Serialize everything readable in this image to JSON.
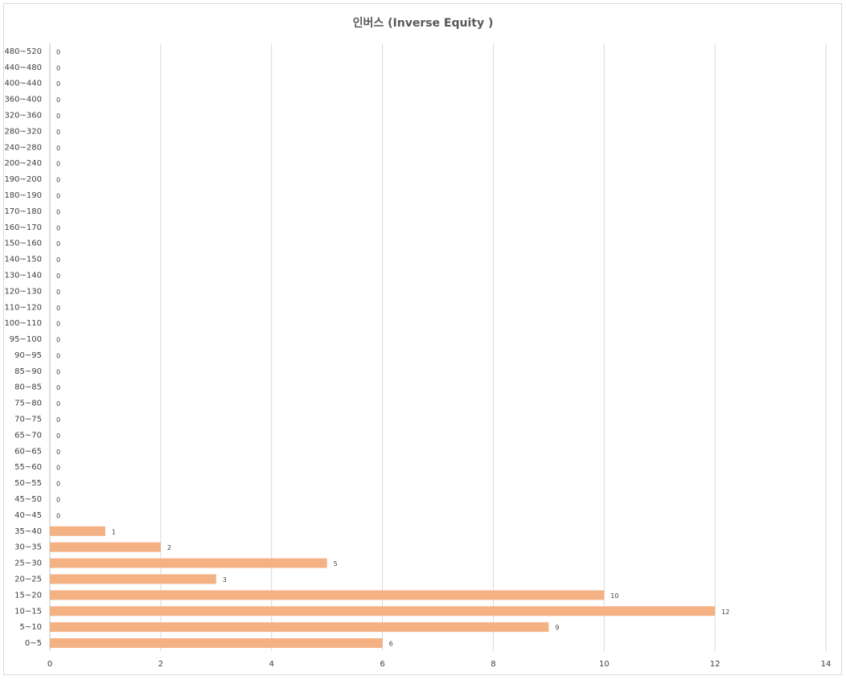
{
  "chart_data": {
    "type": "bar",
    "orientation": "horizontal",
    "title": "인버스 (Inverse Equity )",
    "categories": [
      "0~5",
      "5~10",
      "10~15",
      "15~20",
      "20~25",
      "25~30",
      "30~35",
      "35~40",
      "40~45",
      "45~50",
      "50~55",
      "55~60",
      "60~65",
      "65~70",
      "70~75",
      "75~80",
      "80~85",
      "85~90",
      "90~95",
      "95~100",
      "100~110",
      "110~120",
      "120~130",
      "130~140",
      "140~150",
      "150~160",
      "160~170",
      "170~180",
      "180~190",
      "190~200",
      "200~240",
      "240~280",
      "280~320",
      "320~360",
      "360~400",
      "400~440",
      "440~480",
      "480~520"
    ],
    "values": [
      6,
      9,
      12,
      10,
      3,
      5,
      2,
      1,
      0,
      0,
      0,
      0,
      0,
      0,
      0,
      0,
      0,
      0,
      0,
      0,
      0,
      0,
      0,
      0,
      0,
      0,
      0,
      0,
      0,
      0,
      0,
      0,
      0,
      0,
      0,
      0,
      0,
      0
    ],
    "color": "#f4b183",
    "xlim": [
      0,
      14
    ],
    "xticks": [
      0,
      2,
      4,
      6,
      8,
      10,
      12,
      14
    ],
    "grid": true
  }
}
